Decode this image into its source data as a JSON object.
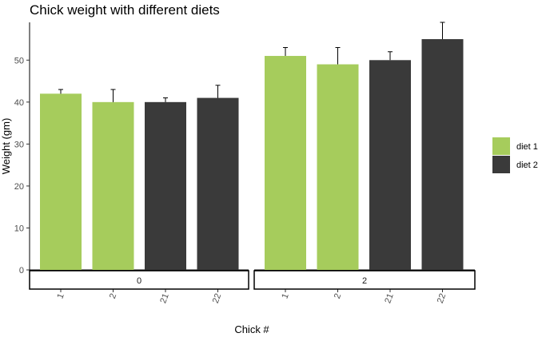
{
  "chart_data": {
    "type": "bar",
    "title": "Chick weight with different diets",
    "xlabel": "Chick #",
    "ylabel": "Weight (gm)",
    "ylim": [
      0,
      59
    ],
    "yticks": [
      0,
      10,
      20,
      30,
      40,
      50
    ],
    "grid": false,
    "legend_position": "right",
    "series": [
      {
        "name": "diet 1",
        "color": "#a6cc5c"
      },
      {
        "name": "diet 2",
        "color": "#3a3a3a"
      }
    ],
    "facets": [
      {
        "label": "0",
        "bars": [
          {
            "category": "1",
            "value": 42,
            "error": 1,
            "series": "diet 1"
          },
          {
            "category": "2",
            "value": 40,
            "error": 3,
            "series": "diet 1"
          },
          {
            "category": "21",
            "value": 40,
            "error": 1,
            "series": "diet 2"
          },
          {
            "category": "22",
            "value": 41,
            "error": 3,
            "series": "diet 2"
          }
        ]
      },
      {
        "label": "2",
        "bars": [
          {
            "category": "1",
            "value": 51,
            "error": 2,
            "series": "diet 1"
          },
          {
            "category": "2",
            "value": 49,
            "error": 4,
            "series": "diet 1"
          },
          {
            "category": "21",
            "value": 50,
            "error": 2,
            "series": "diet 2"
          },
          {
            "category": "22",
            "value": 55,
            "error": 4,
            "series": "diet 2"
          }
        ]
      }
    ]
  }
}
